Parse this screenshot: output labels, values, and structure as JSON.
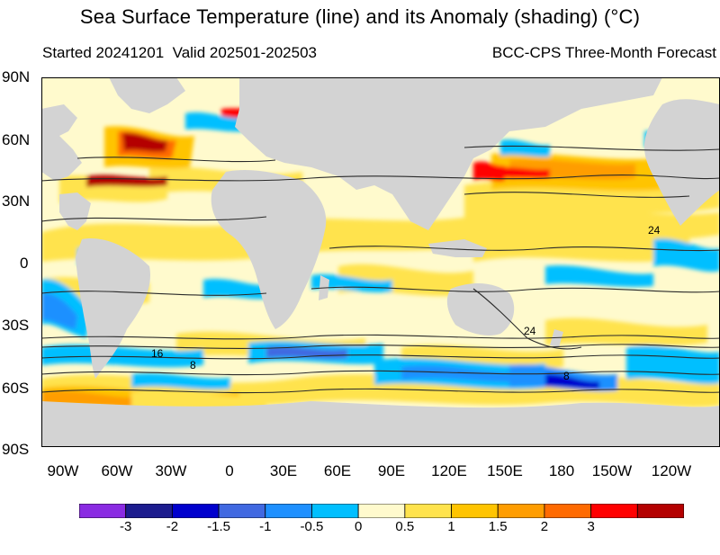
{
  "header": {
    "title": "Sea Surface Temperature (line) and its Anomaly (shading) (°C)",
    "started": "Started 20241201",
    "valid": "Valid 202501-202503",
    "model": "BCC-CPS Three-Month Forecast"
  },
  "lat_labels": [
    "90N",
    "60N",
    "30N",
    "0",
    "30S",
    "60S",
    "90S"
  ],
  "lon_labels": [
    "90W",
    "60W",
    "30W",
    "0",
    "30E",
    "60E",
    "90E",
    "120E",
    "150E",
    "180",
    "150W",
    "120W"
  ],
  "contour_labels": [
    "24",
    "24",
    "16",
    "8",
    "8"
  ],
  "colorbar": {
    "colors": [
      "#8a2be2",
      "#1c1c8e",
      "#0000cd",
      "#4169e1",
      "#1e90ff",
      "#00bfff",
      "#fffacd",
      "#ffe34d",
      "#ffc400",
      "#ff9d00",
      "#ff6a00",
      "#ff0000",
      "#b40000"
    ],
    "labels": [
      "-3",
      "-2",
      "-1.5",
      "-1",
      "-0.5",
      "0",
      "0.5",
      "1",
      "1.5",
      "2",
      "3"
    ]
  },
  "colors": {
    "land": "#d3d3d3",
    "ocean_base": "#fffacd",
    "contour": "#2a2a2a"
  }
}
